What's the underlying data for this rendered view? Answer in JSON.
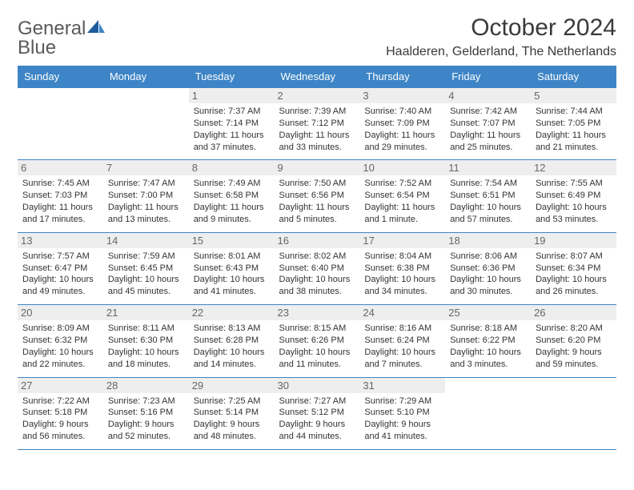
{
  "logo": {
    "word1": "General",
    "word2": "Blue"
  },
  "header": {
    "month_title": "October 2024",
    "location": "Haalderen, Gelderland, The Netherlands"
  },
  "colors": {
    "header_bg": "#3d85c6",
    "header_fg": "#ffffff",
    "daynum_bg": "#eeeeee",
    "border": "#3d85c6"
  },
  "weekdays": [
    "Sunday",
    "Monday",
    "Tuesday",
    "Wednesday",
    "Thursday",
    "Friday",
    "Saturday"
  ],
  "weeks": [
    [
      null,
      null,
      {
        "n": "1",
        "sr": "Sunrise: 7:37 AM",
        "ss": "Sunset: 7:14 PM",
        "dl": "Daylight: 11 hours and 37 minutes."
      },
      {
        "n": "2",
        "sr": "Sunrise: 7:39 AM",
        "ss": "Sunset: 7:12 PM",
        "dl": "Daylight: 11 hours and 33 minutes."
      },
      {
        "n": "3",
        "sr": "Sunrise: 7:40 AM",
        "ss": "Sunset: 7:09 PM",
        "dl": "Daylight: 11 hours and 29 minutes."
      },
      {
        "n": "4",
        "sr": "Sunrise: 7:42 AM",
        "ss": "Sunset: 7:07 PM",
        "dl": "Daylight: 11 hours and 25 minutes."
      },
      {
        "n": "5",
        "sr": "Sunrise: 7:44 AM",
        "ss": "Sunset: 7:05 PM",
        "dl": "Daylight: 11 hours and 21 minutes."
      }
    ],
    [
      {
        "n": "6",
        "sr": "Sunrise: 7:45 AM",
        "ss": "Sunset: 7:03 PM",
        "dl": "Daylight: 11 hours and 17 minutes."
      },
      {
        "n": "7",
        "sr": "Sunrise: 7:47 AM",
        "ss": "Sunset: 7:00 PM",
        "dl": "Daylight: 11 hours and 13 minutes."
      },
      {
        "n": "8",
        "sr": "Sunrise: 7:49 AM",
        "ss": "Sunset: 6:58 PM",
        "dl": "Daylight: 11 hours and 9 minutes."
      },
      {
        "n": "9",
        "sr": "Sunrise: 7:50 AM",
        "ss": "Sunset: 6:56 PM",
        "dl": "Daylight: 11 hours and 5 minutes."
      },
      {
        "n": "10",
        "sr": "Sunrise: 7:52 AM",
        "ss": "Sunset: 6:54 PM",
        "dl": "Daylight: 11 hours and 1 minute."
      },
      {
        "n": "11",
        "sr": "Sunrise: 7:54 AM",
        "ss": "Sunset: 6:51 PM",
        "dl": "Daylight: 10 hours and 57 minutes."
      },
      {
        "n": "12",
        "sr": "Sunrise: 7:55 AM",
        "ss": "Sunset: 6:49 PM",
        "dl": "Daylight: 10 hours and 53 minutes."
      }
    ],
    [
      {
        "n": "13",
        "sr": "Sunrise: 7:57 AM",
        "ss": "Sunset: 6:47 PM",
        "dl": "Daylight: 10 hours and 49 minutes."
      },
      {
        "n": "14",
        "sr": "Sunrise: 7:59 AM",
        "ss": "Sunset: 6:45 PM",
        "dl": "Daylight: 10 hours and 45 minutes."
      },
      {
        "n": "15",
        "sr": "Sunrise: 8:01 AM",
        "ss": "Sunset: 6:43 PM",
        "dl": "Daylight: 10 hours and 41 minutes."
      },
      {
        "n": "16",
        "sr": "Sunrise: 8:02 AM",
        "ss": "Sunset: 6:40 PM",
        "dl": "Daylight: 10 hours and 38 minutes."
      },
      {
        "n": "17",
        "sr": "Sunrise: 8:04 AM",
        "ss": "Sunset: 6:38 PM",
        "dl": "Daylight: 10 hours and 34 minutes."
      },
      {
        "n": "18",
        "sr": "Sunrise: 8:06 AM",
        "ss": "Sunset: 6:36 PM",
        "dl": "Daylight: 10 hours and 30 minutes."
      },
      {
        "n": "19",
        "sr": "Sunrise: 8:07 AM",
        "ss": "Sunset: 6:34 PM",
        "dl": "Daylight: 10 hours and 26 minutes."
      }
    ],
    [
      {
        "n": "20",
        "sr": "Sunrise: 8:09 AM",
        "ss": "Sunset: 6:32 PM",
        "dl": "Daylight: 10 hours and 22 minutes."
      },
      {
        "n": "21",
        "sr": "Sunrise: 8:11 AM",
        "ss": "Sunset: 6:30 PM",
        "dl": "Daylight: 10 hours and 18 minutes."
      },
      {
        "n": "22",
        "sr": "Sunrise: 8:13 AM",
        "ss": "Sunset: 6:28 PM",
        "dl": "Daylight: 10 hours and 14 minutes."
      },
      {
        "n": "23",
        "sr": "Sunrise: 8:15 AM",
        "ss": "Sunset: 6:26 PM",
        "dl": "Daylight: 10 hours and 11 minutes."
      },
      {
        "n": "24",
        "sr": "Sunrise: 8:16 AM",
        "ss": "Sunset: 6:24 PM",
        "dl": "Daylight: 10 hours and 7 minutes."
      },
      {
        "n": "25",
        "sr": "Sunrise: 8:18 AM",
        "ss": "Sunset: 6:22 PM",
        "dl": "Daylight: 10 hours and 3 minutes."
      },
      {
        "n": "26",
        "sr": "Sunrise: 8:20 AM",
        "ss": "Sunset: 6:20 PM",
        "dl": "Daylight: 9 hours and 59 minutes."
      }
    ],
    [
      {
        "n": "27",
        "sr": "Sunrise: 7:22 AM",
        "ss": "Sunset: 5:18 PM",
        "dl": "Daylight: 9 hours and 56 minutes."
      },
      {
        "n": "28",
        "sr": "Sunrise: 7:23 AM",
        "ss": "Sunset: 5:16 PM",
        "dl": "Daylight: 9 hours and 52 minutes."
      },
      {
        "n": "29",
        "sr": "Sunrise: 7:25 AM",
        "ss": "Sunset: 5:14 PM",
        "dl": "Daylight: 9 hours and 48 minutes."
      },
      {
        "n": "30",
        "sr": "Sunrise: 7:27 AM",
        "ss": "Sunset: 5:12 PM",
        "dl": "Daylight: 9 hours and 44 minutes."
      },
      {
        "n": "31",
        "sr": "Sunrise: 7:29 AM",
        "ss": "Sunset: 5:10 PM",
        "dl": "Daylight: 9 hours and 41 minutes."
      },
      null,
      null
    ]
  ]
}
